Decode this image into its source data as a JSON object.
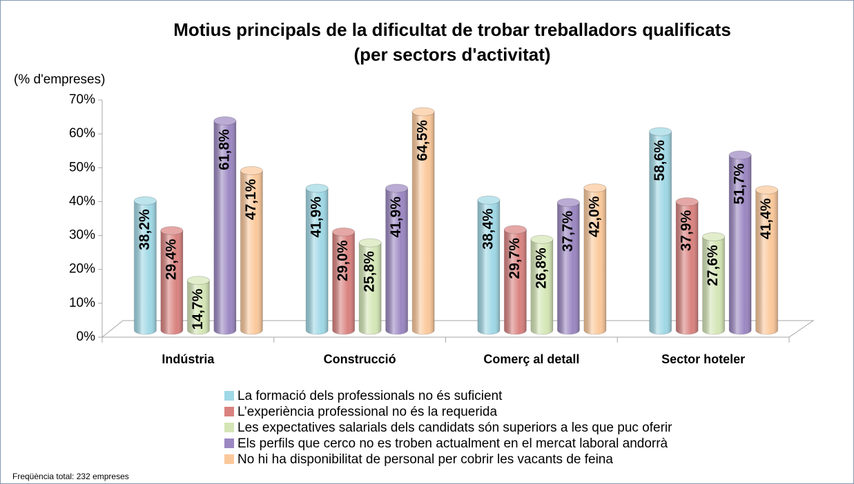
{
  "chart_data": {
    "type": "bar",
    "title": "Motius principals de la dificultat de trobar treballadors qualificats",
    "subtitle": "(per sectors d'activitat)",
    "y_label": "(% d'empreses)",
    "note": "Freqüència total: 232 empreses",
    "categories": [
      "Indústria",
      "Construcció",
      "Comerç al detall",
      "Sector hoteler"
    ],
    "series": [
      {
        "name": "La formació dels professionals no és suficient",
        "color": "#9fd8e6",
        "values": [
          38.2,
          41.9,
          38.4,
          58.6
        ],
        "value_labels": [
          "38,2%",
          "41,9%",
          "38,4%",
          "58,6%"
        ]
      },
      {
        "name": "L’experiència professional no és la requerida",
        "color": "#d9827f",
        "values": [
          29.4,
          29.0,
          29.7,
          37.9
        ],
        "value_labels": [
          "29,4%",
          "29,0%",
          "29,7%",
          "37,9%"
        ]
      },
      {
        "name": "Les expectatives salarials dels candidats són superiors a les que puc oferir",
        "color": "#d4e6b5",
        "values": [
          14.7,
          25.8,
          26.8,
          27.6
        ],
        "value_labels": [
          "14,7%",
          "25,8%",
          "26,8%",
          "27,6%"
        ]
      },
      {
        "name": "Els perfils que cerco no es troben actualment en el mercat laboral andorrà",
        "color": "#9b87c2",
        "values": [
          61.8,
          41.9,
          37.7,
          51.7
        ],
        "value_labels": [
          "61,8%",
          "41,9%",
          "37,7%",
          "51,7%"
        ]
      },
      {
        "name": "No hi ha disponibilitat de personal per cobrir les vacants de feina",
        "color": "#fbc89a",
        "values": [
          47.1,
          64.5,
          42.0,
          41.4
        ],
        "value_labels": [
          "47,1%",
          "64,5%",
          "42,0%",
          "41,4%"
        ]
      }
    ],
    "ylim": [
      0,
      70
    ],
    "yticks": [
      {
        "value": 0,
        "label": "0%"
      },
      {
        "value": 10,
        "label": "10%"
      },
      {
        "value": 20,
        "label": "20%"
      },
      {
        "value": 30,
        "label": "30%"
      },
      {
        "value": 40,
        "label": "40%"
      },
      {
        "value": 50,
        "label": "50%"
      },
      {
        "value": 60,
        "label": "60%"
      },
      {
        "value": 70,
        "label": "70%"
      }
    ],
    "legend": "bottom"
  }
}
